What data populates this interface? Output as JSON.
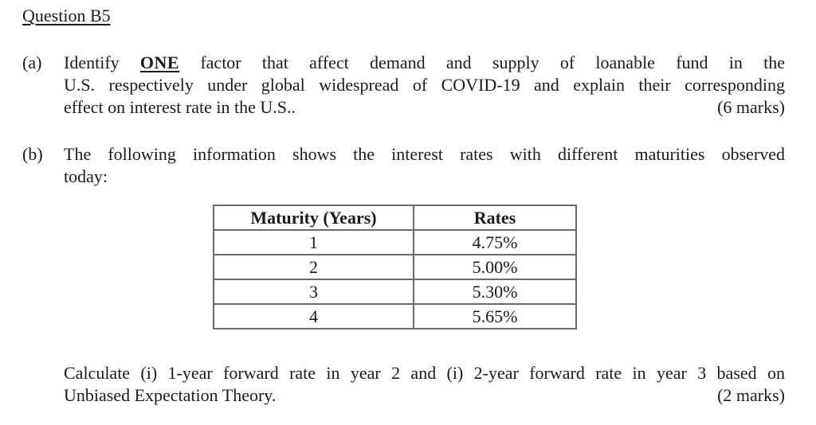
{
  "page": {
    "title": "Question B5",
    "text_color": "#1b1b1b",
    "background_color": "#ffffff",
    "table_border_color": "#6b6b6b"
  },
  "part_a": {
    "label": "(a)",
    "line1_pre": "Identify",
    "line1_emph": "ONE",
    "line1_post": "factor that affect demand and supply of loanable fund in the",
    "line2": "U.S. respectively under global widespread of COVID-19 and explain their corresponding",
    "line3": "effect on interest rate in the U.S..",
    "marks": "(6 marks)"
  },
  "part_b": {
    "label": "(b)",
    "line1": "The following information shows the interest rates with different maturities observed",
    "line2": "today:",
    "table": {
      "headers": [
        "Maturity (Years)",
        "Rates"
      ],
      "rows": [
        [
          "1",
          "4.75%"
        ],
        [
          "2",
          "5.00%"
        ],
        [
          "3",
          "5.30%"
        ],
        [
          "4",
          "5.65%"
        ]
      ]
    },
    "calc_line1": "Calculate (i) 1-year forward rate in year 2 and (i) 2-year forward rate in year 3 based on",
    "calc_line2": "Unbiased Expectation Theory.",
    "marks": "(2 marks)"
  }
}
